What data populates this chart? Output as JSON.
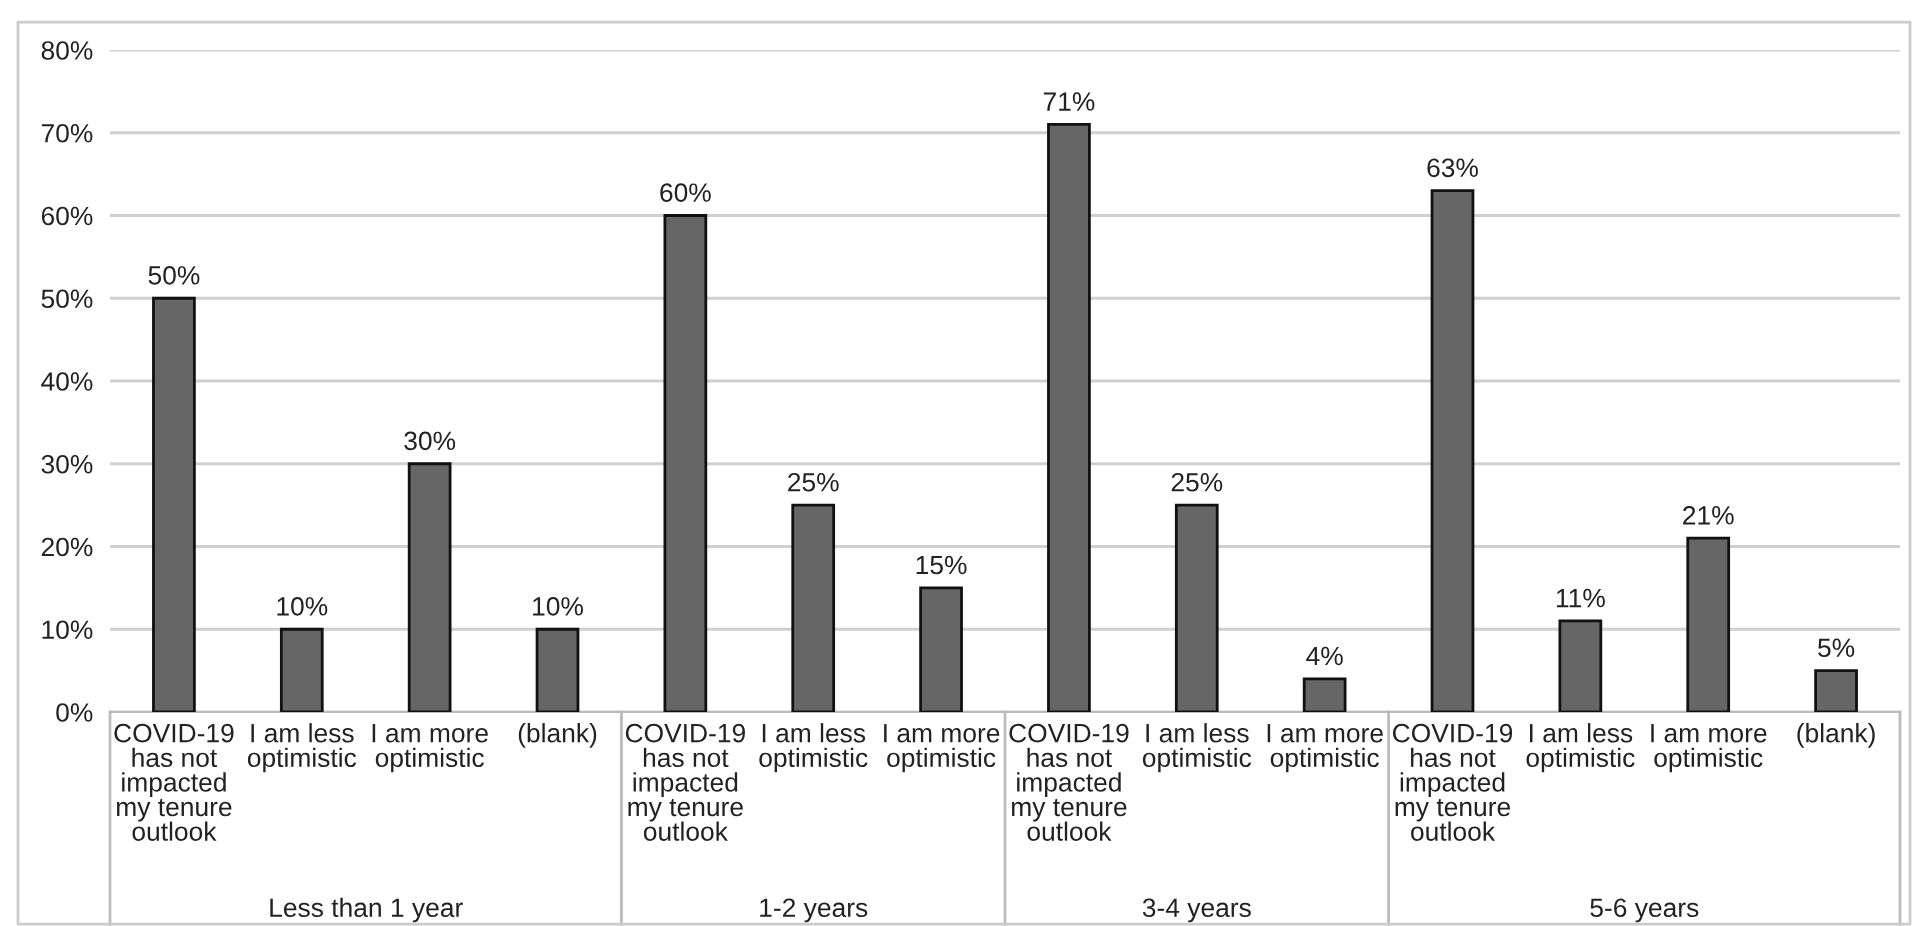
{
  "chart_data": {
    "type": "bar",
    "categories": [
      "COVID-19\nhas not\nimpacted\nmy tenure\noutlook",
      "I am less\noptimistic",
      "I am more\noptimistic",
      "(blank)",
      "COVID-19\nhas not\nimpacted\nmy tenure\noutlook",
      "I am less\noptimistic",
      "I am more\noptimistic",
      "COVID-19\nhas not\nimpacted\nmy tenure\noutlook",
      "I am less\noptimistic",
      "I am more\noptimistic",
      "COVID-19\nhas not\nimpacted\nmy tenure\noutlook",
      "I am less\noptimistic",
      "I am more\noptimistic",
      "(blank)"
    ],
    "values": [
      50,
      10,
      30,
      10,
      60,
      25,
      15,
      71,
      25,
      4,
      63,
      11,
      21,
      5
    ],
    "value_labels": [
      "50%",
      "10%",
      "30%",
      "10%",
      "60%",
      "25%",
      "15%",
      "71%",
      "25%",
      "4%",
      "63%",
      "11%",
      "21%",
      "5%"
    ],
    "color": "#666666",
    "ylim": [
      0,
      80
    ],
    "yticks": [
      {
        "value": 0,
        "label": "0%"
      },
      {
        "value": 10,
        "label": "10%"
      },
      {
        "value": 20,
        "label": "20%"
      },
      {
        "value": 30,
        "label": "30%"
      },
      {
        "value": 40,
        "label": "40%"
      },
      {
        "value": 50,
        "label": "50%"
      },
      {
        "value": 60,
        "label": "60%"
      },
      {
        "value": 70,
        "label": "70%"
      },
      {
        "value": 80,
        "label": "80%"
      }
    ],
    "grid": "y",
    "annotations": [
      "Less than 1 year",
      "1-2 years",
      "3-4 years",
      "5-6 years"
    ]
  }
}
